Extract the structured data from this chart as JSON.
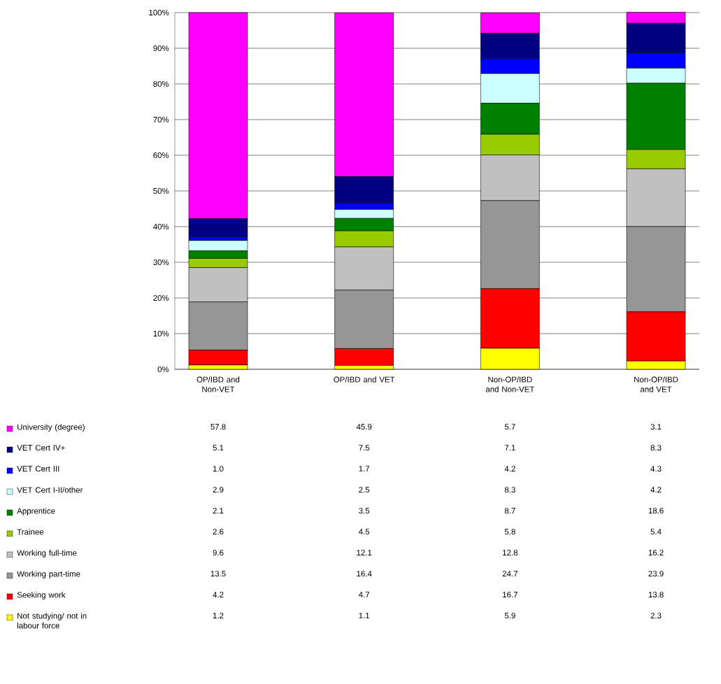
{
  "chart_data": {
    "type": "bar",
    "stacked": true,
    "categories": [
      "OP/IBD and Non-VET",
      "OP/IBD and VET",
      "Non-OP/IBD and Non-VET",
      "Non-OP/IBD and VET"
    ],
    "series": [
      {
        "name": "Not studying/ not in labour force",
        "color": "#ffff00",
        "values": [
          1.2,
          1.1,
          5.9,
          2.3
        ],
        "value_labels": [
          "1.2",
          "1.1",
          "5.9",
          "2.3"
        ]
      },
      {
        "name": "Seeking work",
        "color": "#ff0000",
        "values": [
          4.2,
          4.7,
          16.7,
          13.8
        ],
        "value_labels": [
          "4.2",
          "4.7",
          "16.7",
          "13.8"
        ]
      },
      {
        "name": "Working part-time",
        "color": "#969696",
        "values": [
          13.5,
          16.4,
          24.7,
          23.9
        ],
        "value_labels": [
          "13.5",
          "16.4",
          "24.7",
          "23.9"
        ]
      },
      {
        "name": "Working full-time",
        "color": "#c0c0c0",
        "values": [
          9.6,
          12.1,
          12.8,
          16.2
        ],
        "value_labels": [
          "9.6",
          "12.1",
          "12.8",
          "16.2"
        ]
      },
      {
        "name": "Trainee",
        "color": "#99cc00",
        "values": [
          2.6,
          4.5,
          5.8,
          5.4
        ],
        "value_labels": [
          "2.6",
          "4.5",
          "5.8",
          "5.4"
        ]
      },
      {
        "name": "Apprentice",
        "color": "#008000",
        "values": [
          2.1,
          3.5,
          8.7,
          18.6
        ],
        "value_labels": [
          "2.1",
          "3.5",
          "8.7",
          "18.6"
        ]
      },
      {
        "name": "VET Cert I-II/other",
        "color": "#ccffff",
        "values": [
          2.9,
          2.5,
          8.3,
          4.2
        ],
        "value_labels": [
          "2.9",
          "2.5",
          "8.3",
          "4.2"
        ]
      },
      {
        "name": "VET Cert III",
        "color": "#0000ff",
        "values": [
          1.0,
          1.7,
          4.2,
          4.3
        ],
        "value_labels": [
          "1.0",
          "1.7",
          "4.2",
          "4.3"
        ]
      },
      {
        "name": "VET Cert IV+",
        "color": "#000080",
        "values": [
          5.1,
          7.5,
          7.1,
          8.3
        ],
        "value_labels": [
          "5.1",
          "7.5",
          "7.1",
          "8.3"
        ]
      },
      {
        "name": "University (degree)",
        "color": "#ff00ff",
        "values": [
          57.8,
          45.9,
          5.7,
          3.1
        ],
        "value_labels": [
          "57.8",
          "45.9",
          "5.7",
          "3.1"
        ]
      }
    ],
    "ylim": [
      0,
      100
    ],
    "yticks": [
      {
        "value": 0,
        "label": "0%"
      },
      {
        "value": 10,
        "label": "10%"
      },
      {
        "value": 20,
        "label": "20%"
      },
      {
        "value": 30,
        "label": "30%"
      },
      {
        "value": 40,
        "label": "40%"
      },
      {
        "value": 50,
        "label": "50%"
      },
      {
        "value": 60,
        "label": "60%"
      },
      {
        "value": 70,
        "label": "70%"
      },
      {
        "value": 80,
        "label": "80%"
      },
      {
        "value": 90,
        "label": "90%"
      },
      {
        "value": 100,
        "label": "100%"
      }
    ],
    "grid": "y",
    "legend": "bottom"
  }
}
